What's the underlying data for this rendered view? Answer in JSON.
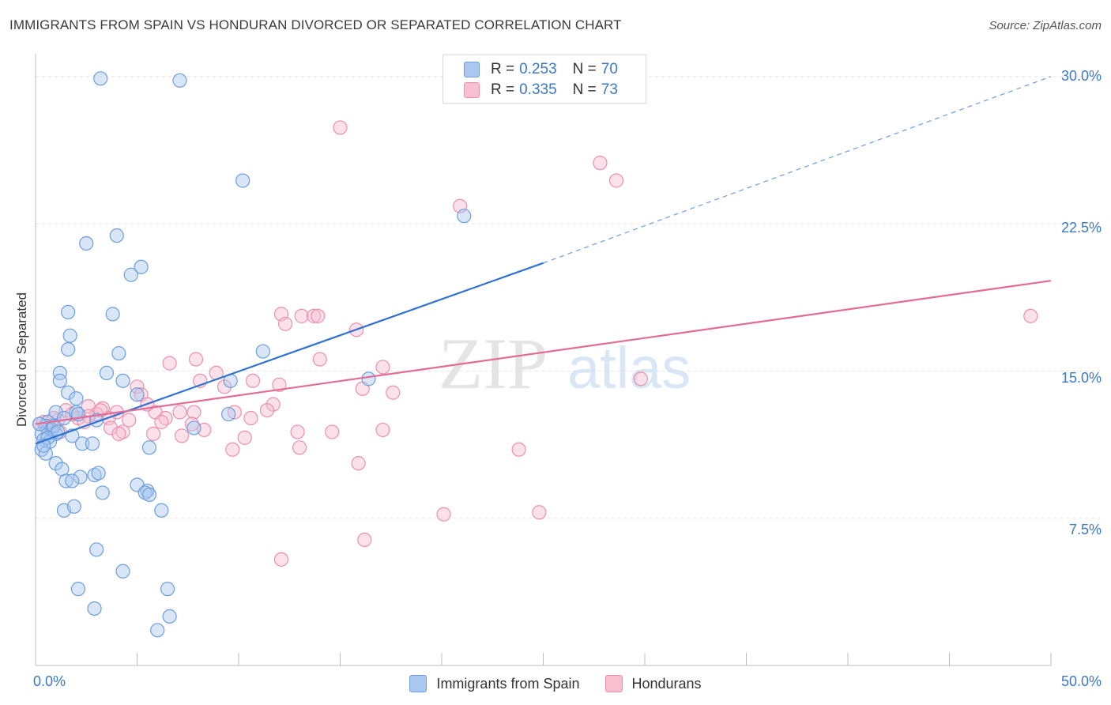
{
  "header": {
    "title": "IMMIGRANTS FROM SPAIN VS HONDURAN DIVORCED OR SEPARATED CORRELATION CHART",
    "source": "Source: ZipAtlas.com"
  },
  "watermark": {
    "zip": "ZIP",
    "atlas": "atlas"
  },
  "legend_top": {
    "series1": {
      "r_label": "R =",
      "r_value": "0.253",
      "n_label": "N =",
      "n_value": "70"
    },
    "series2": {
      "r_label": "R =",
      "r_value": "0.335",
      "n_label": "N =",
      "n_value": "73"
    }
  },
  "colors": {
    "blue_fill": "#a9c8f0",
    "blue_stroke": "#6d9ede",
    "blue_line": "#2f72d4",
    "pink_fill": "#f7bfd0",
    "pink_stroke": "#ec8fae",
    "pink_line": "#e36c96",
    "grid": "#e4e4e4",
    "axis_text": "#3b78c6"
  },
  "chart_data": {
    "type": "scatter",
    "title": "IMMIGRANTS FROM SPAIN VS HONDURAN DIVORCED OR SEPARATED CORRELATION CHART",
    "xlabel": "",
    "ylabel": "Divorced or Separated",
    "xlim": [
      0,
      50
    ],
    "ylim": [
      0,
      31
    ],
    "x_tick_labels": {
      "min": "0.0%",
      "max": "50.0%"
    },
    "y_ticks": [
      {
        "value": 7.5,
        "label": "7.5%"
      },
      {
        "value": 15.0,
        "label": "15.0%"
      },
      {
        "value": 22.5,
        "label": "22.5%"
      },
      {
        "value": 30.0,
        "label": "30.0%"
      }
    ],
    "grid": true,
    "legend_position": "bottom",
    "series": [
      {
        "name": "Immigrants from Spain",
        "color": "blue",
        "trend": {
          "x0": 0,
          "y0": 11.3,
          "x1": 25,
          "y1": 20.5,
          "dashed_to_x": 50,
          "dashed_to_y": 30.0
        },
        "points": [
          [
            3.2,
            29.9
          ],
          [
            7.1,
            29.8
          ],
          [
            10.2,
            24.7
          ],
          [
            4.0,
            21.9
          ],
          [
            2.5,
            21.5
          ],
          [
            5.2,
            20.3
          ],
          [
            4.7,
            19.9
          ],
          [
            21.1,
            22.9
          ],
          [
            1.6,
            18.0
          ],
          [
            3.8,
            17.9
          ],
          [
            1.7,
            16.8
          ],
          [
            1.6,
            16.1
          ],
          [
            4.1,
            15.9
          ],
          [
            11.2,
            16.0
          ],
          [
            1.2,
            14.9
          ],
          [
            3.5,
            14.9
          ],
          [
            1.2,
            14.5
          ],
          [
            4.3,
            14.5
          ],
          [
            9.6,
            14.5
          ],
          [
            16.4,
            14.6
          ],
          [
            1.6,
            13.9
          ],
          [
            2.0,
            13.6
          ],
          [
            5.0,
            13.8
          ],
          [
            1.0,
            12.9
          ],
          [
            2.0,
            12.9
          ],
          [
            9.5,
            12.8
          ],
          [
            1.4,
            12.6
          ],
          [
            0.6,
            12.4
          ],
          [
            0.5,
            12.2
          ],
          [
            0.8,
            12.0
          ],
          [
            0.3,
            11.8
          ],
          [
            1.0,
            11.8
          ],
          [
            1.8,
            11.7
          ],
          [
            0.4,
            11.5
          ],
          [
            0.7,
            11.4
          ],
          [
            2.3,
            11.3
          ],
          [
            2.8,
            11.3
          ],
          [
            0.3,
            11.0
          ],
          [
            0.5,
            10.8
          ],
          [
            5.6,
            11.1
          ],
          [
            1.0,
            10.3
          ],
          [
            1.3,
            10.0
          ],
          [
            2.2,
            9.6
          ],
          [
            2.9,
            9.7
          ],
          [
            3.1,
            9.8
          ],
          [
            1.5,
            9.4
          ],
          [
            1.8,
            9.4
          ],
          [
            5.0,
            9.2
          ],
          [
            5.5,
            8.9
          ],
          [
            3.3,
            8.8
          ],
          [
            5.4,
            8.8
          ],
          [
            5.6,
            8.7
          ],
          [
            1.4,
            7.9
          ],
          [
            1.9,
            8.1
          ],
          [
            6.2,
            7.9
          ],
          [
            3.0,
            5.9
          ],
          [
            4.3,
            4.8
          ],
          [
            2.1,
            3.9
          ],
          [
            6.5,
            3.9
          ],
          [
            2.9,
            2.9
          ],
          [
            6.6,
            2.5
          ],
          [
            6.0,
            1.8
          ],
          [
            0.2,
            12.3
          ],
          [
            0.6,
            11.6
          ],
          [
            0.9,
            12.2
          ],
          [
            7.8,
            12.1
          ],
          [
            1.1,
            11.9
          ],
          [
            2.1,
            12.8
          ],
          [
            0.4,
            11.2
          ],
          [
            3.0,
            12.5
          ]
        ]
      },
      {
        "name": "Hondurans",
        "color": "pink",
        "trend": {
          "x0": 0,
          "y0": 12.3,
          "x1": 50,
          "y1": 19.6
        },
        "points": [
          [
            15.0,
            27.4
          ],
          [
            27.8,
            25.6
          ],
          [
            28.6,
            24.7
          ],
          [
            20.9,
            23.4
          ],
          [
            49.0,
            17.8
          ],
          [
            12.1,
            17.9
          ],
          [
            13.1,
            17.8
          ],
          [
            13.7,
            17.8
          ],
          [
            13.9,
            17.8
          ],
          [
            12.3,
            17.4
          ],
          [
            15.8,
            17.1
          ],
          [
            7.9,
            15.6
          ],
          [
            14.0,
            15.6
          ],
          [
            6.6,
            15.4
          ],
          [
            17.1,
            15.2
          ],
          [
            8.9,
            14.9
          ],
          [
            8.1,
            14.5
          ],
          [
            10.7,
            14.5
          ],
          [
            12.0,
            14.3
          ],
          [
            29.8,
            14.6
          ],
          [
            5.0,
            14.2
          ],
          [
            16.1,
            14.1
          ],
          [
            9.3,
            14.2
          ],
          [
            17.6,
            13.9
          ],
          [
            5.2,
            13.8
          ],
          [
            11.7,
            13.3
          ],
          [
            2.6,
            13.2
          ],
          [
            3.3,
            13.1
          ],
          [
            1.5,
            13.0
          ],
          [
            3.0,
            12.8
          ],
          [
            4.0,
            12.9
          ],
          [
            2.1,
            12.6
          ],
          [
            3.6,
            12.6
          ],
          [
            5.9,
            12.9
          ],
          [
            7.1,
            12.9
          ],
          [
            7.8,
            12.9
          ],
          [
            9.8,
            12.9
          ],
          [
            11.4,
            13.0
          ],
          [
            6.4,
            12.6
          ],
          [
            1.1,
            12.5
          ],
          [
            0.4,
            12.4
          ],
          [
            0.8,
            12.2
          ],
          [
            0.2,
            12.3
          ],
          [
            4.6,
            12.5
          ],
          [
            6.2,
            12.4
          ],
          [
            7.7,
            12.3
          ],
          [
            10.6,
            12.6
          ],
          [
            3.7,
            12.1
          ],
          [
            8.3,
            12.0
          ],
          [
            12.9,
            11.9
          ],
          [
            14.6,
            11.9
          ],
          [
            17.1,
            12.0
          ],
          [
            4.3,
            11.9
          ],
          [
            4.1,
            11.8
          ],
          [
            5.8,
            11.8
          ],
          [
            7.2,
            11.7
          ],
          [
            10.3,
            11.6
          ],
          [
            13.0,
            11.1
          ],
          [
            9.7,
            11.0
          ],
          [
            23.8,
            11.0
          ],
          [
            15.9,
            10.3
          ],
          [
            20.1,
            7.7
          ],
          [
            24.8,
            7.8
          ],
          [
            16.2,
            6.4
          ],
          [
            12.1,
            5.4
          ],
          [
            1.8,
            12.8
          ],
          [
            2.6,
            12.7
          ],
          [
            0.6,
            12.0
          ],
          [
            1.2,
            11.9
          ],
          [
            3.2,
            13.0
          ],
          [
            0.9,
            12.6
          ],
          [
            2.4,
            12.4
          ],
          [
            5.5,
            13.3
          ]
        ]
      }
    ]
  }
}
